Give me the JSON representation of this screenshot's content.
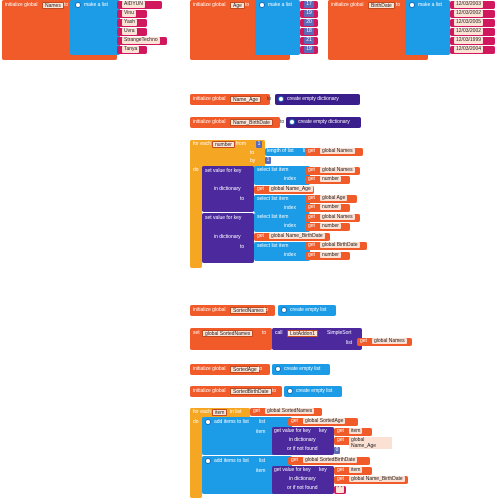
{
  "names_block": {
    "init": "initialize global",
    "var": "Names",
    "to": "to",
    "make": "make a list",
    "items": [
      "AIDYUN",
      "Vinu",
      "Yash",
      "Uvra",
      "StrangeTechno",
      "Tanya"
    ]
  },
  "age_block": {
    "init": "initialize global",
    "var": "Age",
    "to": "to",
    "make": "make a list",
    "items": [
      "17",
      "19",
      "20",
      "18",
      "21",
      "19"
    ]
  },
  "bd_block": {
    "init": "initialize global",
    "var": "BirthDate",
    "to": "to",
    "make": "make a list",
    "items": [
      "12/03/2003",
      "12/03/2002",
      "12/03/2005",
      "12/03/2002",
      "12/03/1999",
      "12/03/2004"
    ]
  },
  "dict1": {
    "init": "initialize global",
    "var": "Name_Age",
    "to": "to",
    "create": "create empty dictionary"
  },
  "dict2": {
    "init": "initialize global",
    "var": "Name_BirthDate",
    "to": "to",
    "create": "create empty dictionary"
  },
  "loop": {
    "for_each": "for each",
    "number_var": "number",
    "from": "from",
    "from_val": "1",
    "to": "to",
    "length": "length of list",
    "list": "list",
    "get": "get",
    "global_names": "global Names",
    "by": "by",
    "by_val": "1",
    "do": "do",
    "set_value": "set value for key",
    "select_item": "select list item",
    "index": "index",
    "in_dictionary": "in dictionary",
    "to2": "to",
    "global_name_age": "global Name_Age",
    "global_age": "global Age",
    "global_name_bd": "global Name_BirthDate",
    "global_bd": "global BirthDate",
    "number": "number"
  },
  "sorted_names": {
    "init": "initialize global",
    "var": "SortedNames",
    "to": "to",
    "create": "create empty list"
  },
  "set_sorted": {
    "set": "set",
    "var": "global SortedNames",
    "to": "to",
    "call": "call",
    "comp": "ListAddon1",
    "method": "SimpleSort",
    "list": "list",
    "get": "get",
    "global_names": "global Names"
  },
  "sorted_age": {
    "init": "initialize global",
    "var": "SortedAge",
    "to": "to",
    "create": "create empty list"
  },
  "sorted_bd": {
    "init": "initialize global",
    "var": "SortedBirthDate",
    "to": "to",
    "create": "create empty list"
  },
  "loop2": {
    "for_each": "for each",
    "item_var": "item",
    "in_list": "in list",
    "get": "get",
    "global_sorted_names": "global SortedNames",
    "do": "do",
    "add_items": "add items to list",
    "list": "list",
    "item": "item",
    "get_value": "get value for key",
    "key": "key",
    "in_dictionary": "in dictionary",
    "not_found": "or if not found",
    "global_sorted_age": "global SortedAge",
    "global_sorted_bd": "global SortedBirthDate",
    "global_name_age": "global Name_Age",
    "global_name_bd": "global Name_BirthDate",
    "item_get": "item",
    "nf1": "0",
    "nf2": "\" \""
  }
}
